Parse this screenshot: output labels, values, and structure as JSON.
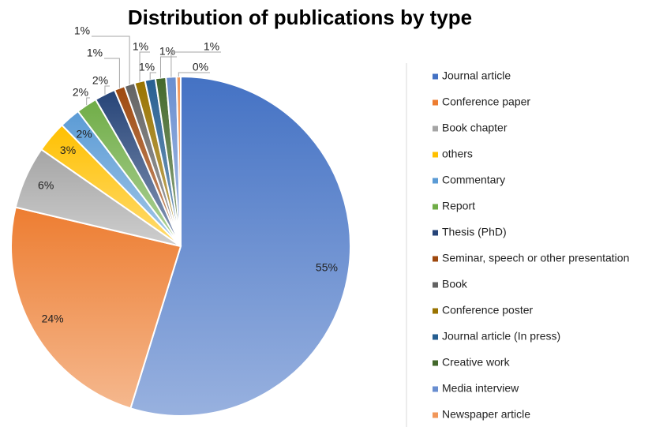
{
  "chart_data": {
    "type": "pie",
    "title": "Distribution of publications by type",
    "categories": [
      "Journal article",
      "Conference paper",
      "Book chapter",
      "others",
      "Commentary",
      "Report",
      "Thesis (PhD)",
      "Seminar, speech or other presentation",
      "Book",
      "Conference poster",
      "Journal article (In press)",
      "Creative work",
      "Media interview",
      "Newspaper article"
    ],
    "values": [
      55,
      24,
      6,
      3,
      2,
      2,
      2,
      1,
      1,
      1,
      1,
      1,
      1,
      0.4
    ],
    "value_labels": [
      "55%",
      "24%",
      "6%",
      "3%",
      "2%",
      "2%",
      "2%",
      "1%",
      "1%",
      "1%",
      "1%",
      "1%",
      "1%",
      "0%"
    ],
    "colors": [
      "#4472c4",
      "#ed7d31",
      "#a5a5a5",
      "#ffc000",
      "#5b9bd5",
      "#70ad47",
      "#264478",
      "#9e480e",
      "#636363",
      "#997300",
      "#255e91",
      "#43682b",
      "#698ed0",
      "#f1975a"
    ],
    "legend": "right"
  }
}
